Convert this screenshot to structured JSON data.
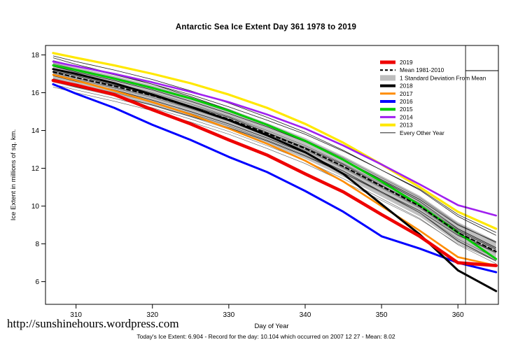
{
  "watermark": "http://sunshinehours.wordpress.com",
  "footer": "Today's Ice Extent: 6.904  - Record for the day: 10.104 which occurred on 2007 12 27  - Mean: 8.02",
  "chart_data": {
    "type": "line",
    "title": "Antarctic Sea Ice Extent Day 361 1978 to 2019",
    "xlabel": "Day of Year",
    "ylabel": "Ice Extent in millions of sq. km.",
    "xlim": [
      306,
      365.3
    ],
    "ylim": [
      4.8,
      18.5
    ],
    "xticks": [
      310,
      320,
      330,
      340,
      350,
      360
    ],
    "yticks": [
      6,
      8,
      10,
      12,
      14,
      16,
      18
    ],
    "vline_x": 361,
    "grid": false,
    "legend_position": "top-right",
    "x": [
      307,
      310,
      315,
      320,
      325,
      330,
      335,
      340,
      345,
      350,
      355,
      360,
      365
    ],
    "band": {
      "name": "1 Standard Deviation From Mean",
      "color": "#bdbdbd",
      "upper": [
        17.65,
        17.35,
        16.9,
        16.4,
        15.8,
        15.15,
        14.4,
        13.6,
        12.65,
        11.6,
        10.55,
        9.15,
        8.15
      ],
      "lower": [
        16.55,
        16.25,
        15.8,
        15.3,
        14.7,
        14.05,
        13.3,
        12.5,
        11.55,
        10.5,
        9.45,
        8.05,
        7.05
      ]
    },
    "series": [
      {
        "name": "2013",
        "color": "#ffe800",
        "width": 3.2,
        "values": [
          18.1,
          17.85,
          17.45,
          17.0,
          16.5,
          15.9,
          15.2,
          14.35,
          13.35,
          12.2,
          11.0,
          9.7,
          8.8
        ]
      },
      {
        "name": "2014",
        "color": "#a020f0",
        "width": 2.6,
        "values": [
          17.65,
          17.4,
          17.0,
          16.55,
          16.05,
          15.5,
          14.85,
          14.1,
          13.2,
          12.2,
          11.15,
          10.05,
          9.5
        ]
      },
      {
        "name": "2015",
        "color": "#00cc00",
        "width": 3.0,
        "values": [
          17.45,
          17.2,
          16.75,
          16.25,
          15.7,
          15.05,
          14.3,
          13.45,
          12.45,
          11.3,
          10.05,
          8.6,
          7.2
        ]
      },
      {
        "name": "Mean 1981-2010",
        "color": "#000000",
        "width": 2.0,
        "dash": "5,4",
        "values": [
          17.1,
          16.8,
          16.35,
          15.85,
          15.25,
          14.6,
          13.85,
          13.05,
          12.1,
          11.05,
          10.0,
          8.6,
          7.6
        ]
      },
      {
        "name": "2016",
        "color": "#0000ff",
        "width": 3.0,
        "values": [
          16.45,
          15.95,
          15.2,
          14.3,
          13.5,
          12.6,
          11.8,
          10.8,
          9.7,
          8.4,
          7.75,
          7.0,
          6.5
        ]
      },
      {
        "name": "2017",
        "color": "#ff8c00",
        "width": 2.6,
        "values": [
          16.95,
          16.65,
          16.1,
          15.5,
          14.85,
          14.1,
          13.3,
          12.4,
          11.3,
          10.0,
          8.7,
          7.3,
          6.85
        ]
      },
      {
        "name": "2018",
        "color": "#000000",
        "width": 3.0,
        "values": [
          17.25,
          17.0,
          16.5,
          15.9,
          15.25,
          14.55,
          13.75,
          12.85,
          11.7,
          10.1,
          8.5,
          6.6,
          5.5
        ]
      },
      {
        "name": "2019",
        "color": "#ee0000",
        "width": 4.6,
        "values": [
          16.65,
          16.4,
          15.9,
          15.1,
          14.35,
          13.5,
          12.7,
          11.7,
          10.75,
          9.55,
          8.4,
          7.0,
          6.85
        ]
      }
    ],
    "every_other_year": {
      "name": "Every Other Year",
      "series": [
        [
          17.7,
          17.4,
          16.95,
          16.45,
          15.9,
          15.25,
          14.55,
          13.8,
          12.9,
          11.9,
          10.9,
          9.55,
          8.6
        ],
        [
          17.55,
          17.25,
          16.8,
          16.3,
          15.7,
          15.05,
          14.3,
          13.5,
          12.55,
          11.5,
          10.45,
          9.05,
          8.05
        ],
        [
          17.4,
          17.1,
          16.65,
          16.15,
          15.55,
          14.9,
          14.2,
          13.4,
          12.45,
          11.4,
          10.35,
          9.0,
          8.1
        ],
        [
          17.25,
          16.95,
          16.5,
          16.0,
          15.4,
          14.75,
          14.0,
          13.2,
          12.25,
          11.2,
          10.15,
          8.75,
          7.75
        ],
        [
          17.15,
          16.9,
          16.4,
          15.95,
          15.3,
          14.7,
          13.9,
          13.1,
          12.2,
          11.1,
          10.05,
          8.7,
          7.7
        ],
        [
          17.0,
          16.7,
          16.25,
          15.75,
          15.15,
          14.5,
          13.75,
          12.95,
          12.0,
          10.95,
          9.9,
          8.5,
          7.5
        ],
        [
          16.9,
          16.6,
          16.15,
          15.6,
          15.0,
          14.35,
          13.6,
          12.8,
          11.85,
          10.75,
          9.65,
          8.15,
          7.1
        ],
        [
          16.75,
          16.45,
          16.0,
          15.5,
          14.9,
          14.25,
          13.5,
          12.7,
          11.75,
          10.7,
          9.65,
          8.25,
          7.25
        ],
        [
          16.6,
          16.3,
          15.85,
          15.35,
          14.75,
          14.15,
          13.45,
          12.65,
          11.75,
          10.75,
          9.75,
          8.45,
          7.55
        ],
        [
          16.45,
          16.15,
          15.7,
          15.2,
          14.6,
          13.95,
          13.2,
          12.4,
          11.45,
          10.4,
          9.35,
          7.95,
          6.95
        ],
        [
          17.85,
          17.5,
          17.0,
          16.45,
          15.8,
          15.1,
          14.3,
          13.45,
          12.45,
          11.35,
          10.25,
          8.8,
          7.8
        ],
        [
          17.05,
          16.78,
          16.28,
          15.82,
          15.18,
          14.55,
          13.82,
          13.0,
          12.05,
          11.0,
          9.95,
          8.55,
          7.55
        ],
        [
          17.95,
          17.65,
          17.2,
          16.7,
          16.1,
          15.45,
          14.7,
          13.9,
          12.95,
          11.9,
          10.85,
          9.45,
          8.45
        ],
        [
          16.3,
          16.0,
          15.55,
          15.05,
          14.45,
          13.8,
          13.05,
          12.25,
          11.3,
          10.3,
          9.3,
          8.0,
          7.1
        ]
      ]
    },
    "legend": [
      {
        "label": "2019",
        "color": "#ee0000",
        "width": 5.0
      },
      {
        "label": "Mean 1981-2010",
        "color": "#000000",
        "width": 2.2,
        "dash": "4,3"
      },
      {
        "label": "1 Standard Deviation From Mean",
        "color": "#bdbdbd",
        "width": 8.0
      },
      {
        "label": "2018",
        "color": "#000000",
        "width": 4.0
      },
      {
        "label": "2017",
        "color": "#ff8c00",
        "width": 3.0
      },
      {
        "label": "2016",
        "color": "#0000ff",
        "width": 4.0
      },
      {
        "label": "2015",
        "color": "#00cc00",
        "width": 4.0
      },
      {
        "label": "2014",
        "color": "#a020f0",
        "width": 3.0
      },
      {
        "label": "2013",
        "color": "#ffe800",
        "width": 4.0
      },
      {
        "label": "Every Other Year",
        "color": "#000000",
        "width": 0.8
      }
    ]
  }
}
